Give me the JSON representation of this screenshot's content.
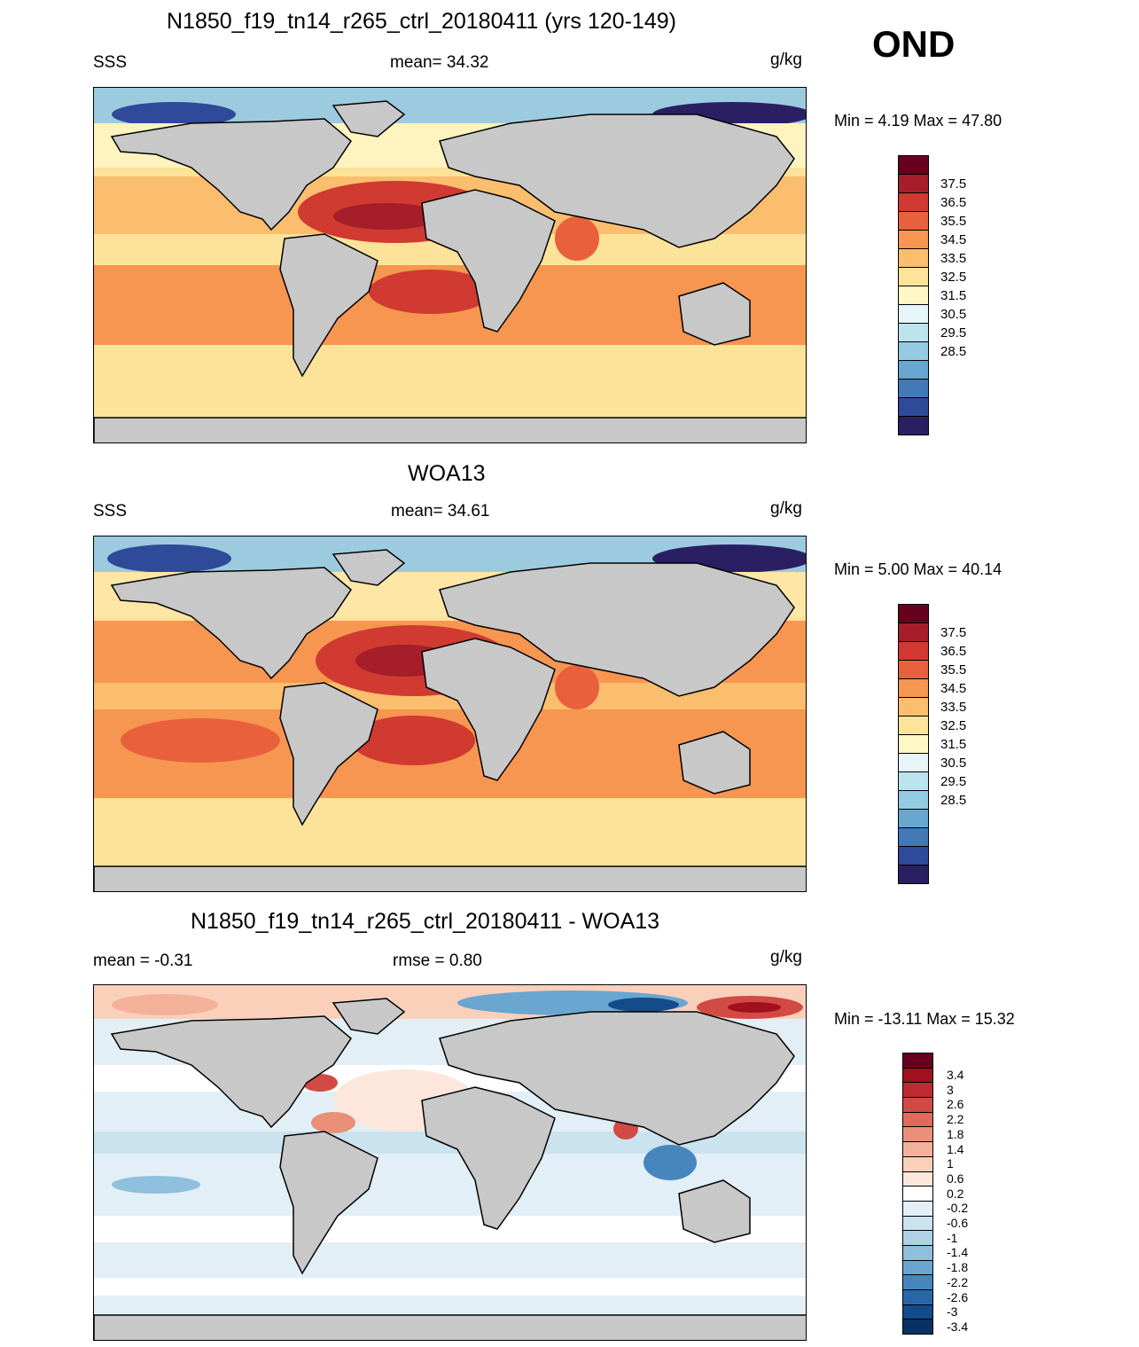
{
  "season": "OND",
  "units": "g/kg",
  "panels": [
    {
      "title": "N1850_f19_tn14_r265_ctrl_20180411 (yrs 120-149)",
      "left_label": "SSS",
      "center_label": "mean=  34.32",
      "right_label": "g/kg",
      "minmax": "Min =   4.19 Max =  47.80",
      "colorbar": {
        "labels": [
          "37.5",
          "36.5",
          "35.5",
          "34.5",
          "33.5",
          "32.5",
          "31.5",
          "30.5",
          "29.5",
          "28.5"
        ],
        "colors": [
          "#67001f",
          "#a51e2a",
          "#d03a30",
          "#e8613c",
          "#f69650",
          "#fbbe6e",
          "#fee39a",
          "#fff8c4",
          "#e6f5f8",
          "#bde3ef",
          "#93cbe3",
          "#68a7d0",
          "#4479b7",
          "#2e4a98",
          "#2b1f63"
        ]
      }
    },
    {
      "title": "WOA13",
      "left_label": "SSS",
      "center_label": "mean=  34.61",
      "right_label": "g/kg",
      "minmax": "Min =   5.00 Max =  40.14",
      "colorbar": {
        "labels": [
          "37.5",
          "36.5",
          "35.5",
          "34.5",
          "33.5",
          "32.5",
          "31.5",
          "30.5",
          "29.5",
          "28.5"
        ],
        "colors": [
          "#67001f",
          "#a51e2a",
          "#d03a30",
          "#e8613c",
          "#f69650",
          "#fbbe6e",
          "#fee39a",
          "#fff8c4",
          "#e6f5f8",
          "#bde3ef",
          "#93cbe3",
          "#68a7d0",
          "#4479b7",
          "#2e4a98",
          "#2b1f63"
        ]
      }
    },
    {
      "title": "N1850_f19_tn14_r265_ctrl_20180411 - WOA13",
      "left_label": "mean =  -0.31",
      "center_label": "rmse =   0.80",
      "right_label": "g/kg",
      "minmax": "Min = -13.11 Max =  15.32",
      "colorbar": {
        "labels": [
          "3.4",
          "3",
          "2.6",
          "2.2",
          "1.8",
          "1.4",
          "1",
          "0.6",
          "0.2",
          "-0.2",
          "-0.6",
          "-1",
          "-1.4",
          "-1.8",
          "-2.2",
          "-2.6",
          "-3",
          "-3.4"
        ],
        "colors": [
          "#67001f",
          "#a0101f",
          "#be2a32",
          "#d14a44",
          "#df6b5c",
          "#ea8f78",
          "#f4b199",
          "#fbd0bb",
          "#fde7dc",
          "#ffffff",
          "#e2eff6",
          "#cbe2ef",
          "#aed1e5",
          "#8ebfdc",
          "#6aa6cf",
          "#4686bd",
          "#2966a8",
          "#144b8b",
          "#083263"
        ]
      }
    }
  ],
  "map": {
    "ocean_color_top": "#fbbe6e",
    "ocean_color_diff": "#e6f0f7",
    "land_color": "#c8c8c8"
  }
}
